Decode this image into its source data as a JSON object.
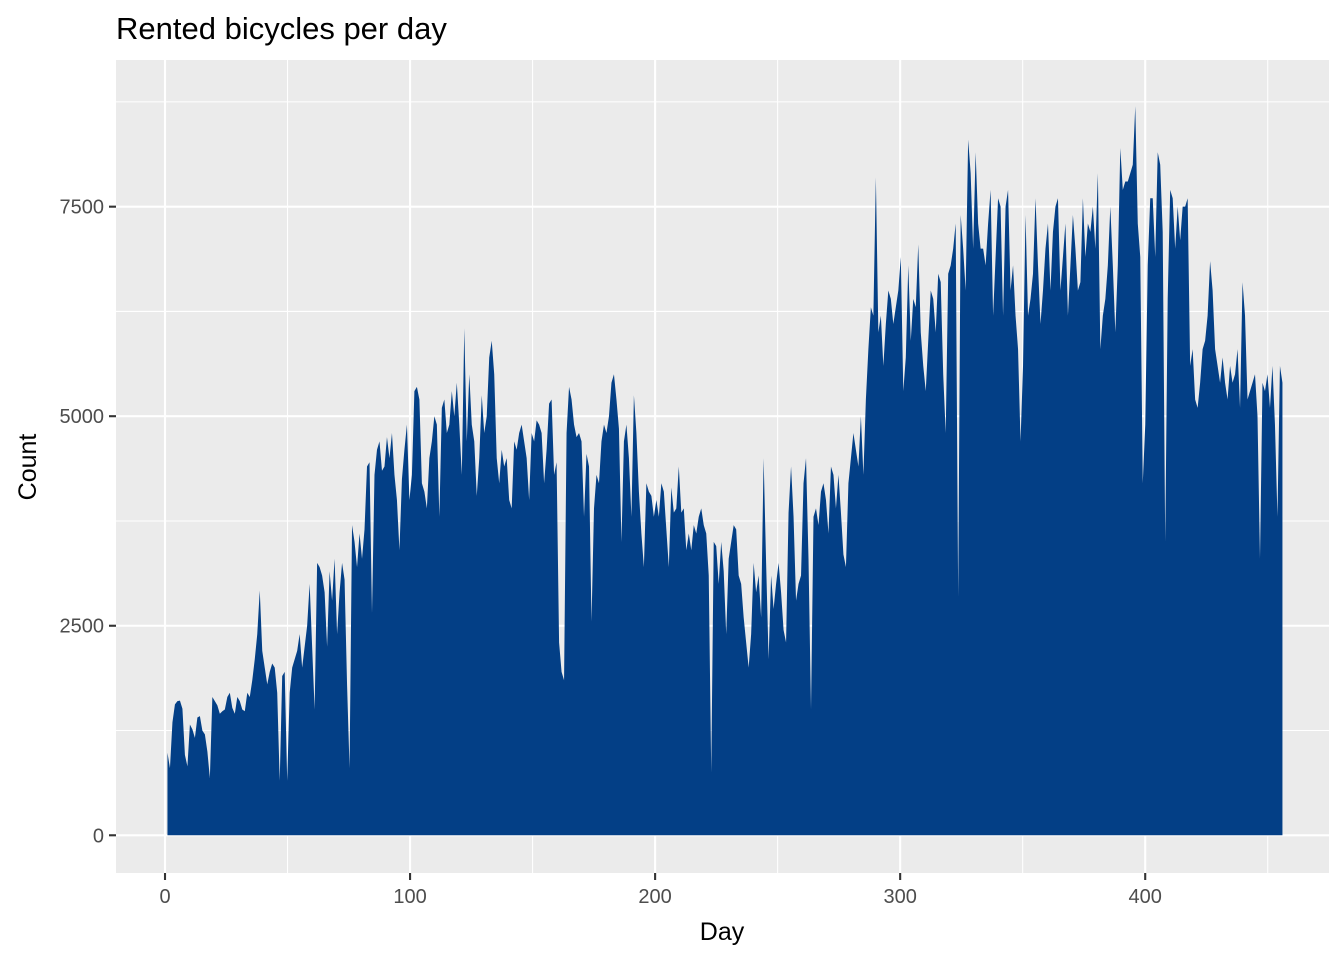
{
  "chart_data": {
    "type": "area",
    "title": "Rented bicycles per day",
    "xlabel": "Day",
    "ylabel": "Count",
    "xlim": [
      -20,
      475
    ],
    "ylim": [
      -450,
      9250
    ],
    "x_ticks": [
      0,
      100,
      200,
      300,
      400
    ],
    "y_ticks": [
      0,
      2500,
      5000,
      7500
    ],
    "grid": true,
    "legend": "none",
    "fill_color": "#033f86",
    "panel_color": "#ebebeb",
    "x_range": [
      1,
      456
    ],
    "y": [
      985,
      801,
      1349,
      1562,
      1600,
      1606,
      1510,
      959,
      822,
      1321,
      1263,
      1162,
      1406,
      1421,
      1248,
      1204,
      1000,
      683,
      1650,
      1600,
      1550,
      1450,
      1480,
      1500,
      1650,
      1700,
      1520,
      1450,
      1650,
      1600,
      1500,
      1480,
      1700,
      1650,
      1850,
      2100,
      2400,
      2920,
      2200,
      2000,
      1800,
      1950,
      2050,
      2000,
      1700,
      650,
      1900,
      1950,
      650,
      1700,
      2000,
      2100,
      2200,
      2400,
      2000,
      2250,
      2500,
      3000,
      2250,
      1500,
      3250,
      3200,
      3100,
      2900,
      2250,
      3150,
      2800,
      3300,
      2400,
      2900,
      3250,
      3050,
      1800,
      800,
      3700,
      3500,
      3200,
      3600,
      3300,
      3650,
      4400,
      4450,
      2650,
      4300,
      4600,
      4700,
      4350,
      4400,
      4750,
      4500,
      4800,
      4300,
      4000,
      3400,
      4250,
      4600,
      4900,
      4000,
      4300,
      5300,
      5350,
      5200,
      4200,
      4100,
      3900,
      4500,
      4700,
      5000,
      4900,
      3800,
      5100,
      5200,
      4800,
      4900,
      5300,
      5000,
      5400,
      4900,
      4300,
      6050,
      4700,
      5500,
      4900,
      4700,
      4050,
      4500,
      5250,
      4800,
      5000,
      5700,
      5900,
      5500,
      4500,
      4200,
      4600,
      4400,
      4500,
      4000,
      3900,
      4700,
      4600,
      4800,
      4900,
      4700,
      4500,
      4000,
      4800,
      4700,
      4950,
      4900,
      4800,
      4200,
      4600,
      5150,
      5200,
      4300,
      4450,
      2300,
      1950,
      1850,
      4800,
      5350,
      5200,
      4900,
      4750,
      4800,
      4700,
      3800,
      4550,
      4400,
      2550,
      3900,
      4300,
      4200,
      4700,
      4900,
      4800,
      5000,
      5400,
      5500,
      5200,
      4850,
      3500,
      4700,
      4900,
      4500,
      3800,
      5250,
      4800,
      4100,
      3600,
      3200,
      4200,
      4100,
      4050,
      3800,
      4000,
      3800,
      4200,
      4100,
      3650,
      3200,
      4150,
      3850,
      3900,
      4400,
      3850,
      3900,
      3400,
      3600,
      3400,
      3700,
      3600,
      3800,
      3900,
      3700,
      3600,
      3100,
      750,
      3500,
      3450,
      3000,
      3500,
      3150,
      2400,
      3300,
      3500,
      3700,
      3650,
      3100,
      3000,
      2600,
      2300,
      2000,
      2400,
      3250,
      2900,
      3100,
      2600,
      4500,
      3250,
      2100,
      3100,
      2700,
      3000,
      3250,
      2900,
      2450,
      2300,
      3850,
      4400,
      3800,
      2800,
      3000,
      3100,
      4200,
      4500,
      3300,
      1500,
      3800,
      3900,
      3700,
      4100,
      4200,
      4000,
      3600,
      4400,
      4300,
      3900,
      4300,
      3850,
      3350,
      3200,
      4200,
      4500,
      4800,
      4600,
      4400,
      5000,
      4300,
      5200,
      5800,
      6300,
      6200,
      7850,
      6000,
      6200,
      5600,
      6100,
      6500,
      6400,
      6100,
      6300,
      6500,
      6900,
      5300,
      5700,
      6800,
      5900,
      6400,
      6300,
      7050,
      6000,
      5600,
      5300,
      5900,
      6500,
      6400,
      6000,
      6700,
      6600,
      5500,
      4800,
      6700,
      6800,
      7000,
      7300,
      2850,
      7400,
      7000,
      6500,
      8300,
      7900,
      7000,
      8150,
      7300,
      7000,
      7000,
      6800,
      7300,
      7700,
      6200,
      6900,
      7600,
      7500,
      6200,
      7500,
      7700,
      6500,
      6800,
      6200,
      5800,
      4700,
      5600,
      7400,
      6200,
      6400,
      6700,
      7600,
      6800,
      6100,
      6500,
      7000,
      7300,
      6500,
      7200,
      7500,
      7600,
      6500,
      6900,
      7300,
      6200,
      6800,
      7400,
      7000,
      6500,
      6600,
      7600,
      6900,
      7300,
      7200,
      7500,
      7000,
      7900,
      5800,
      6200,
      6400,
      6800,
      7500,
      6800,
      6000,
      6800,
      8200,
      7700,
      7800,
      7800,
      7900,
      8000,
      8700,
      7300,
      6900,
      4200,
      4900,
      6800,
      7600,
      7600,
      6900,
      8150,
      8000,
      7200,
      3500,
      6400,
      7700,
      7600,
      7000,
      7500,
      7100,
      7500,
      7500,
      7600,
      5600,
      5800,
      5200,
      5100,
      5400,
      5800,
      5900,
      6200,
      6850,
      6500,
      5800,
      5600,
      5400,
      5700,
      5400,
      5200,
      5600,
      5400,
      5500,
      5800,
      5100,
      6600,
      6200,
      5200,
      5300,
      5400,
      5500,
      5000,
      3300,
      5400,
      5300,
      5500,
      5100,
      5600,
      4900,
      3800,
      5600,
      5400
    ]
  }
}
